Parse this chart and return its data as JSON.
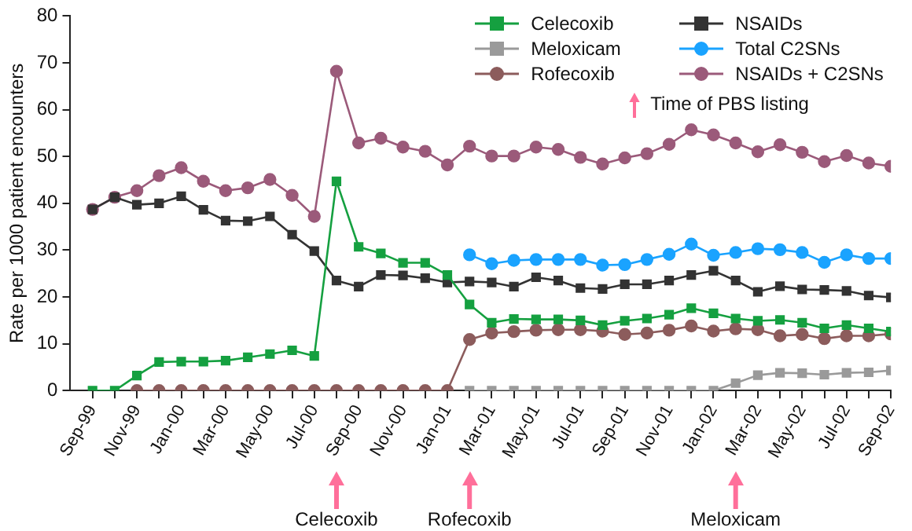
{
  "chart_data": {
    "type": "line",
    "ylabel": "Rate per 1000 patient encounters",
    "x": [
      "1999-09",
      "1999-10",
      "1999-11",
      "1999-12",
      "2000-01",
      "2000-02",
      "2000-03",
      "2000-04",
      "2000-05",
      "2000-06",
      "2000-07",
      "2000-08",
      "2000-09",
      "2000-10",
      "2000-11",
      "2000-12",
      "2001-01",
      "2001-02",
      "2001-03",
      "2001-04",
      "2001-05",
      "2001-06",
      "2001-07",
      "2001-08",
      "2001-09",
      "2001-10",
      "2001-11",
      "2001-12",
      "2002-01",
      "2002-02",
      "2002-03",
      "2002-04",
      "2002-05",
      "2002-06",
      "2002-07",
      "2002-08",
      "2002-09"
    ],
    "xlim": [
      "1999-08",
      "2002-09"
    ],
    "xticks": [
      {
        "value": "1999-09",
        "label": "Sep-99"
      },
      {
        "value": "1999-10",
        "label": null
      },
      {
        "value": "1999-11",
        "label": "Nov-99"
      },
      {
        "value": "1999-12",
        "label": null
      },
      {
        "value": "2000-01",
        "label": "Jan-00"
      },
      {
        "value": "2000-02",
        "label": null
      },
      {
        "value": "2000-03",
        "label": "Mar-00"
      },
      {
        "value": "2000-04",
        "label": null
      },
      {
        "value": "2000-05",
        "label": "May-00"
      },
      {
        "value": "2000-06",
        "label": null
      },
      {
        "value": "2000-07",
        "label": "Jul-00"
      },
      {
        "value": "2000-08",
        "label": null
      },
      {
        "value": "2000-09",
        "label": "Sep-00"
      },
      {
        "value": "2000-10",
        "label": null
      },
      {
        "value": "2000-11",
        "label": "Nov-00"
      },
      {
        "value": "2000-12",
        "label": null
      },
      {
        "value": "2001-01",
        "label": "Jan-01"
      },
      {
        "value": "2001-02",
        "label": null
      },
      {
        "value": "2001-03",
        "label": "Mar-01"
      },
      {
        "value": "2001-04",
        "label": null
      },
      {
        "value": "2001-05",
        "label": "May-01"
      },
      {
        "value": "2001-06",
        "label": null
      },
      {
        "value": "2001-07",
        "label": "Jul-01"
      },
      {
        "value": "2001-08",
        "label": null
      },
      {
        "value": "2001-09",
        "label": "Sep-01"
      },
      {
        "value": "2001-10",
        "label": null
      },
      {
        "value": "2001-11",
        "label": "Nov-01"
      },
      {
        "value": "2001-12",
        "label": null
      },
      {
        "value": "2002-01",
        "label": "Jan-02"
      },
      {
        "value": "2002-02",
        "label": null
      },
      {
        "value": "2002-03",
        "label": "Mar-02"
      },
      {
        "value": "2002-04",
        "label": null
      },
      {
        "value": "2002-05",
        "label": "May-02"
      },
      {
        "value": "2002-06",
        "label": null
      },
      {
        "value": "2002-07",
        "label": "Jul-02"
      },
      {
        "value": "2002-08",
        "label": null
      },
      {
        "value": "2002-09",
        "label": "Sep-02"
      }
    ],
    "ylim": [
      0,
      80
    ],
    "yticks": [
      0,
      10,
      20,
      30,
      40,
      50,
      60,
      70,
      80
    ],
    "grid": false,
    "legend": "top right",
    "line_style": "solid",
    "series": [
      {
        "name": "Celecoxib",
        "color": "#15a040",
        "marker": "square",
        "values": [
          0,
          0,
          3.2,
          6.1,
          6.2,
          6.2,
          6.4,
          7.1,
          7.8,
          8.6,
          7.4,
          44.7,
          30.7,
          29.3,
          27.3,
          27.3,
          24.7,
          18.4,
          14.5,
          15.3,
          15.2,
          15.2,
          15.0,
          14.0,
          14.9,
          15.4,
          16.2,
          17.6,
          16.5,
          15.4,
          14.9,
          15.1,
          14.5,
          13.3,
          14.0,
          13.3,
          12.6
        ]
      },
      {
        "name": "Meloxicam",
        "color": "#9a9a9a",
        "marker": "square",
        "values": [
          null,
          null,
          null,
          null,
          null,
          null,
          null,
          null,
          null,
          null,
          null,
          null,
          null,
          null,
          null,
          null,
          null,
          0,
          0,
          0,
          0,
          0,
          0,
          0,
          0,
          0,
          0,
          0,
          0,
          1.6,
          3.3,
          3.8,
          3.7,
          3.4,
          3.8,
          3.9,
          4.3
        ]
      },
      {
        "name": "Rofecoxib",
        "color": "#8c5c5c",
        "marker": "circle",
        "values": [
          null,
          null,
          0,
          0,
          0,
          0,
          0,
          0,
          0,
          0,
          0,
          0,
          0,
          0,
          0,
          0,
          0,
          10.9,
          12.3,
          12.6,
          12.9,
          13.0,
          13.0,
          12.7,
          12.0,
          12.3,
          12.9,
          13.8,
          12.7,
          13.2,
          13.0,
          11.7,
          12.0,
          11.1,
          11.7,
          11.7,
          12.1
        ]
      },
      {
        "name": "NSAIDs",
        "color": "#333333",
        "marker": "square",
        "values": [
          38.7,
          41.3,
          39.7,
          40.0,
          41.5,
          38.6,
          36.3,
          36.2,
          37.2,
          33.3,
          29.8,
          23.5,
          22.2,
          24.7,
          24.6,
          24.0,
          23.1,
          23.3,
          23.1,
          22.2,
          24.2,
          23.5,
          21.9,
          21.7,
          22.7,
          22.7,
          23.5,
          24.7,
          25.6,
          23.5,
          21.1,
          22.3,
          21.6,
          21.5,
          21.3,
          20.3,
          19.9
        ]
      },
      {
        "name": "Total C2SNs",
        "color": "#1aa3ff",
        "marker": "circle",
        "values": [
          null,
          null,
          null,
          null,
          null,
          null,
          null,
          null,
          null,
          null,
          null,
          null,
          null,
          null,
          null,
          null,
          null,
          29.0,
          27.1,
          27.8,
          28.0,
          28.0,
          28.0,
          26.8,
          26.9,
          28.0,
          29.1,
          31.3,
          28.9,
          29.5,
          30.3,
          30.1,
          29.5,
          27.4,
          29.0,
          28.2,
          28.2
        ]
      },
      {
        "name": "NSAIDs + C2SNs",
        "color": "#9b5a7a",
        "marker": "circle",
        "values": [
          38.7,
          41.3,
          42.7,
          45.9,
          47.6,
          44.7,
          42.7,
          43.3,
          45.1,
          41.7,
          37.2,
          68.2,
          52.9,
          53.9,
          52.0,
          51.1,
          48.2,
          52.2,
          50.1,
          50.1,
          52.0,
          51.5,
          49.8,
          48.4,
          49.7,
          50.6,
          52.6,
          55.7,
          54.6,
          52.9,
          51.0,
          52.5,
          50.9,
          48.9,
          50.2,
          48.6,
          47.9
        ]
      }
    ],
    "ref_lines": [
      {
        "axis": "x",
        "value": "2000-08",
        "label": "Celecoxib",
        "color": "#ff6f9a"
      },
      {
        "axis": "x",
        "value": "2001-02",
        "label": "Rofecoxib",
        "color": "#ff6f9a"
      },
      {
        "axis": "x",
        "value": "2002-02",
        "label": "Meloxicam",
        "color": "#ff6f9a"
      }
    ],
    "annotations": [
      "Time of PBS listing"
    ]
  }
}
